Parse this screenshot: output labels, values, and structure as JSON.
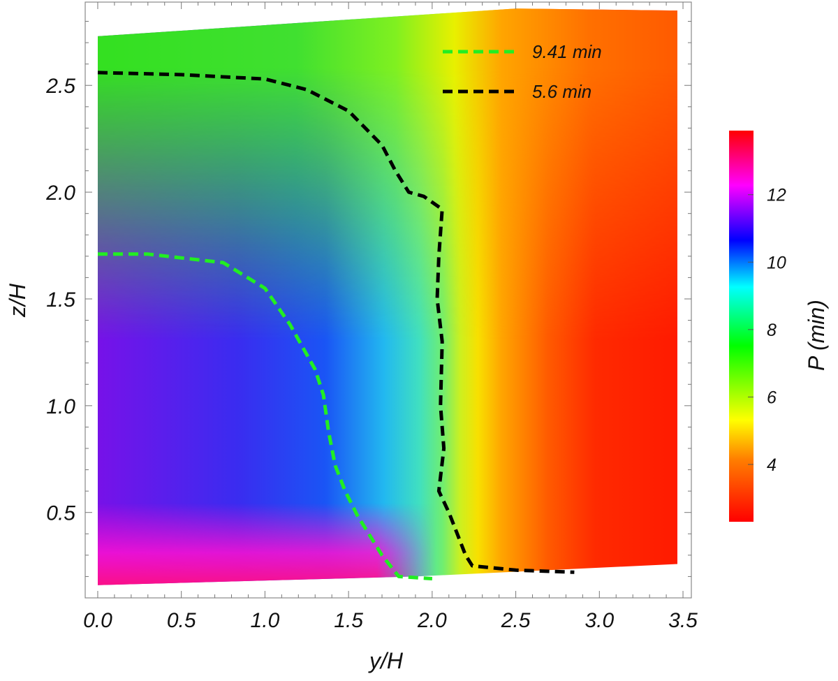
{
  "chart_data": {
    "type": "heatmap",
    "xlabel": "y/H",
    "ylabel": "z/H",
    "xlim": [
      -0.075,
      3.55
    ],
    "ylim": [
      0.1,
      2.89
    ],
    "xticks": [
      "0.0",
      "0.5",
      "1.0",
      "1.5",
      "2.0",
      "2.5",
      "3.0",
      "3.5"
    ],
    "xtick_values": [
      0,
      0.5,
      1.0,
      1.5,
      2.0,
      2.5,
      3.0,
      3.5
    ],
    "yticks": [
      "0.5",
      "1.0",
      "1.5",
      "2.0",
      "2.5"
    ],
    "ytick_values": [
      0.5,
      1.0,
      1.5,
      2.0,
      2.5
    ],
    "colorbar": {
      "label": "P (min)",
      "range": [
        2.3,
        13.9
      ],
      "ticks": [
        "4",
        "6",
        "8",
        "10",
        "12"
      ],
      "tick_values": [
        4,
        6,
        8,
        10,
        12
      ],
      "colormap": "hue: red (low) → yellow → green → cyan → blue → purple → magenta → red (high)"
    },
    "domain_boundary": {
      "top": [
        [
          0,
          2.73
        ],
        [
          2.5,
          2.86
        ],
        [
          3.5,
          2.85
        ]
      ],
      "bottom": [
        [
          0,
          0.16
        ],
        [
          1.9,
          0.2
        ],
        [
          3.5,
          0.26
        ]
      ]
    },
    "field_description": "Period increases from ~3 min (right, y/H > 2.4) to ~10-13 min (lower left, near z/H 0.2-1.5); green ~6 min at upper left.",
    "series": [
      {
        "name": "9.41 min",
        "color": "#22ee22",
        "style": "dashed",
        "x": [
          0.0,
          0.3,
          0.75,
          1.0,
          1.15,
          1.3,
          1.35,
          1.38,
          1.42,
          1.48,
          1.55,
          1.7,
          1.8,
          2.0
        ],
        "y": [
          1.71,
          1.71,
          1.67,
          1.55,
          1.38,
          1.17,
          1.05,
          0.88,
          0.72,
          0.6,
          0.49,
          0.3,
          0.2,
          0.19
        ]
      },
      {
        "name": "5.6 min",
        "color": "#000000",
        "style": "dashed",
        "x": [
          0.0,
          0.5,
          1.0,
          1.25,
          1.5,
          1.7,
          1.78,
          1.82,
          1.86,
          1.95,
          2.06,
          2.04,
          2.03,
          2.06,
          2.05,
          2.07,
          2.04,
          2.1,
          2.15,
          2.2,
          2.24,
          2.5,
          2.85
        ],
        "y": [
          2.56,
          2.55,
          2.53,
          2.48,
          2.38,
          2.22,
          2.1,
          2.05,
          2.0,
          1.98,
          1.92,
          1.7,
          1.5,
          1.3,
          1.0,
          0.8,
          0.6,
          0.5,
          0.4,
          0.3,
          0.25,
          0.23,
          0.22
        ]
      }
    ],
    "legend_position": "top-right"
  }
}
